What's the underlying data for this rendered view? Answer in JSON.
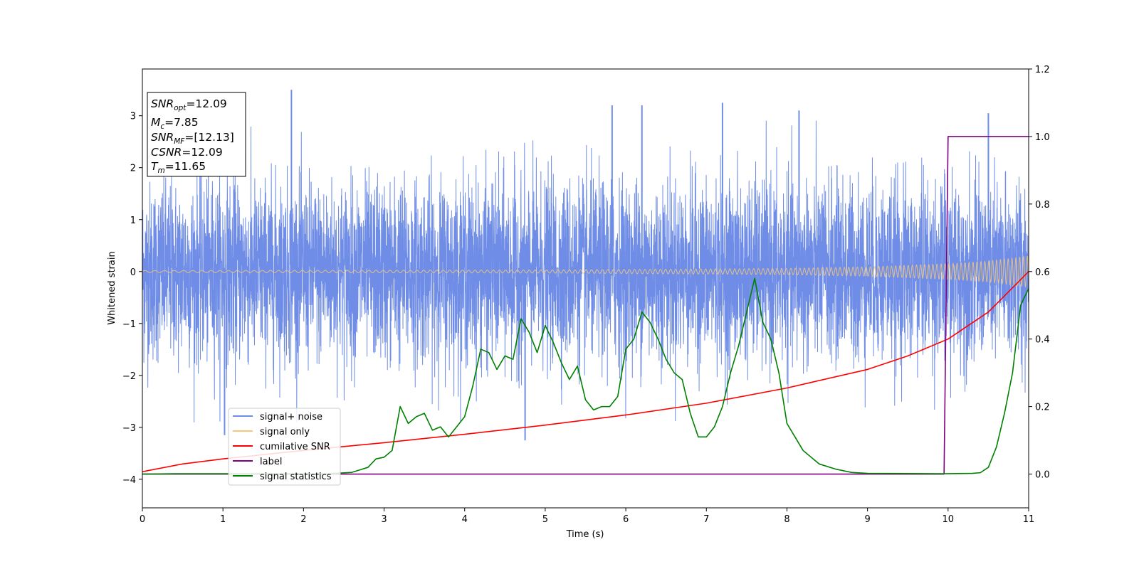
{
  "chart_data": {
    "type": "line",
    "xlabel": "Time (s)",
    "ylabel": "Whitened strain",
    "xlim": [
      0,
      11
    ],
    "ylim_left": [
      -4.55,
      3.9
    ],
    "ylim_right": [
      -0.1,
      1.2
    ],
    "x_ticks": [
      0,
      1,
      2,
      3,
      4,
      5,
      6,
      7,
      8,
      9,
      10,
      11
    ],
    "y_ticks_left": [
      -4,
      -3,
      -2,
      -1,
      0,
      1,
      2,
      3
    ],
    "y_ticks_right": [
      "0.0",
      "0.2",
      "0.4",
      "0.6",
      "0.8",
      "1.0",
      "1.2"
    ],
    "grid": false,
    "legend_position": "lower-left",
    "legend": [
      "signal+ noise",
      "signal only",
      "cumilative SNR",
      "label",
      "signal statistics"
    ],
    "colors": {
      "signal_noise": "#6f8de6",
      "signal_only": "#f5c87a",
      "cumulative_snr": "#ff0000",
      "label": "#800080",
      "signal_statistics": "#008000"
    },
    "annotations": {
      "snr_opt": "=12.09",
      "mc": "=7.85",
      "snr_mf": "=[12.13]",
      "csnr": "=12.09",
      "tm": "=11.65"
    },
    "series": [
      {
        "name": "signal+ noise",
        "axis": "left",
        "description_values": {
          "noise_sigma": 0.85,
          "spikes": [
            [
              1.85,
              3.5
            ],
            [
              5.83,
              3.2
            ],
            [
              6.2,
              3.2
            ],
            [
              7.2,
              3.25
            ],
            [
              8.15,
              3.1
            ],
            [
              10.5,
              3.05
            ],
            [
              4.75,
              -3.25
            ],
            [
              1.02,
              -3.15
            ]
          ]
        }
      },
      {
        "name": "signal only",
        "axis": "left",
        "amplitude_points": [
          [
            0,
            0.02
          ],
          [
            5,
            0.03
          ],
          [
            8,
            0.06
          ],
          [
            9,
            0.09
          ],
          [
            10,
            0.15
          ],
          [
            10.5,
            0.2
          ],
          [
            11,
            0.3
          ]
        ]
      },
      {
        "name": "cumilative SNR",
        "axis": "right",
        "points": [
          [
            0,
            0.007
          ],
          [
            0.5,
            0.03
          ],
          [
            1,
            0.045
          ],
          [
            2,
            0.07
          ],
          [
            3,
            0.093
          ],
          [
            4,
            0.118
          ],
          [
            5,
            0.145
          ],
          [
            6,
            0.175
          ],
          [
            7,
            0.21
          ],
          [
            8,
            0.255
          ],
          [
            9,
            0.31
          ],
          [
            9.5,
            0.35
          ],
          [
            10,
            0.4
          ],
          [
            10.5,
            0.48
          ],
          [
            11,
            0.6
          ]
        ]
      },
      {
        "name": "label",
        "axis": "right",
        "points": [
          [
            0,
            0.0
          ],
          [
            9.95,
            0.0
          ],
          [
            10.0,
            1.0
          ],
          [
            11,
            1.0
          ]
        ]
      },
      {
        "name": "signal statistics",
        "axis": "right",
        "points": [
          [
            0,
            0.0
          ],
          [
            0.4,
            0.001
          ],
          [
            2.3,
            0.001
          ],
          [
            2.6,
            0.005
          ],
          [
            2.8,
            0.02
          ],
          [
            2.9,
            0.045
          ],
          [
            3.0,
            0.05
          ],
          [
            3.1,
            0.07
          ],
          [
            3.2,
            0.2
          ],
          [
            3.3,
            0.15
          ],
          [
            3.4,
            0.17
          ],
          [
            3.5,
            0.18
          ],
          [
            3.6,
            0.13
          ],
          [
            3.7,
            0.14
          ],
          [
            3.8,
            0.11
          ],
          [
            3.9,
            0.14
          ],
          [
            4.0,
            0.17
          ],
          [
            4.1,
            0.26
          ],
          [
            4.2,
            0.37
          ],
          [
            4.3,
            0.36
          ],
          [
            4.4,
            0.31
          ],
          [
            4.5,
            0.35
          ],
          [
            4.6,
            0.34
          ],
          [
            4.7,
            0.46
          ],
          [
            4.8,
            0.42
          ],
          [
            4.9,
            0.36
          ],
          [
            5.0,
            0.44
          ],
          [
            5.1,
            0.39
          ],
          [
            5.2,
            0.33
          ],
          [
            5.3,
            0.28
          ],
          [
            5.4,
            0.32
          ],
          [
            5.5,
            0.22
          ],
          [
            5.6,
            0.19
          ],
          [
            5.7,
            0.2
          ],
          [
            5.8,
            0.2
          ],
          [
            5.9,
            0.23
          ],
          [
            6.0,
            0.37
          ],
          [
            6.1,
            0.4
          ],
          [
            6.2,
            0.48
          ],
          [
            6.3,
            0.45
          ],
          [
            6.4,
            0.4
          ],
          [
            6.5,
            0.34
          ],
          [
            6.6,
            0.3
          ],
          [
            6.7,
            0.28
          ],
          [
            6.8,
            0.18
          ],
          [
            6.9,
            0.11
          ],
          [
            7.0,
            0.11
          ],
          [
            7.1,
            0.14
          ],
          [
            7.2,
            0.2
          ],
          [
            7.3,
            0.3
          ],
          [
            7.4,
            0.38
          ],
          [
            7.5,
            0.48
          ],
          [
            7.6,
            0.58
          ],
          [
            7.7,
            0.45
          ],
          [
            7.8,
            0.4
          ],
          [
            7.9,
            0.3
          ],
          [
            8.0,
            0.15
          ],
          [
            8.1,
            0.11
          ],
          [
            8.2,
            0.07
          ],
          [
            8.3,
            0.05
          ],
          [
            8.4,
            0.03
          ],
          [
            8.6,
            0.015
          ],
          [
            8.8,
            0.005
          ],
          [
            9.0,
            0.002
          ],
          [
            9.95,
            0.001
          ],
          [
            10.3,
            0.002
          ],
          [
            10.4,
            0.004
          ],
          [
            10.5,
            0.02
          ],
          [
            10.6,
            0.08
          ],
          [
            10.7,
            0.18
          ],
          [
            10.8,
            0.3
          ],
          [
            10.9,
            0.5
          ],
          [
            11.0,
            0.55
          ]
        ]
      }
    ]
  }
}
